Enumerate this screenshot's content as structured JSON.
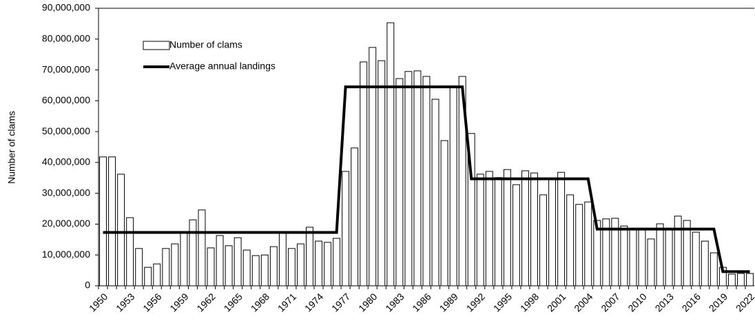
{
  "chart_data": {
    "type": "bar",
    "y_label": "Number of clams",
    "categories": [
      "1950",
      null,
      null,
      "1953",
      null,
      null,
      "1956",
      null,
      null,
      "1959",
      null,
      null,
      "1962",
      null,
      null,
      "1965",
      null,
      null,
      "1968",
      null,
      null,
      "1971",
      null,
      null,
      "1974",
      null,
      null,
      "1977",
      null,
      null,
      "1980",
      null,
      null,
      "1983",
      null,
      null,
      "1986",
      null,
      null,
      "1989",
      null,
      null,
      "1992",
      null,
      null,
      "1995",
      null,
      null,
      "1998",
      null,
      null,
      "2001",
      null,
      null,
      "2004",
      null,
      null,
      "2007",
      null,
      null,
      "2010",
      null,
      null,
      "2013",
      null,
      null,
      "2016",
      null,
      null,
      "2019",
      null,
      null,
      "2022"
    ],
    "series": [
      {
        "name": "Number of clams",
        "type": "bar",
        "color": "#ffffff",
        "edge_color": "#000000",
        "values": [
          41800000,
          41800000,
          36200000,
          22100000,
          12100000,
          6000000,
          7100000,
          12100000,
          13600000,
          17000000,
          21400000,
          24600000,
          12300000,
          16300000,
          13000000,
          15600000,
          11600000,
          9800000,
          10000000,
          12700000,
          17000000,
          12100000,
          13600000,
          19000000,
          14500000,
          14100000,
          15400000,
          37100000,
          44700000,
          72600000,
          77300000,
          73000000,
          85300000,
          67200000,
          69500000,
          69700000,
          67900000,
          60500000,
          47100000,
          64500000,
          67900000,
          49400000,
          36200000,
          37100000,
          35100000,
          37700000,
          32800000,
          37300000,
          36600000,
          29500000,
          34400000,
          36800000,
          29500000,
          26400000,
          27200000,
          21200000,
          21700000,
          21900000,
          19400000,
          18500000,
          18300000,
          15200000,
          20100000,
          18100000,
          22600000,
          21200000,
          17400000,
          14500000,
          10700000,
          6000000,
          3800000,
          4000000,
          4000000
        ]
      },
      {
        "name": "Average annual landings",
        "type": "line",
        "color": "#000000",
        "values": [
          17300000,
          17300000,
          17300000,
          17300000,
          17300000,
          17300000,
          17300000,
          17300000,
          17300000,
          17300000,
          17300000,
          17300000,
          17300000,
          17300000,
          17300000,
          17300000,
          17300000,
          17300000,
          17300000,
          17300000,
          17300000,
          17300000,
          17300000,
          17300000,
          17300000,
          17300000,
          17300000,
          64500000,
          64500000,
          64500000,
          64500000,
          64500000,
          64500000,
          64500000,
          64500000,
          64500000,
          64500000,
          64500000,
          64500000,
          64500000,
          64500000,
          34700000,
          34700000,
          34700000,
          34700000,
          34700000,
          34700000,
          34700000,
          34700000,
          34700000,
          34700000,
          34700000,
          34700000,
          34700000,
          34700000,
          18400000,
          18400000,
          18400000,
          18400000,
          18400000,
          18400000,
          18400000,
          18400000,
          18400000,
          18400000,
          18400000,
          18400000,
          18400000,
          18400000,
          4600000,
          4600000,
          4600000,
          4600000
        ]
      }
    ],
    "ylim": [
      0,
      90000000
    ],
    "yticks": [
      0,
      {
        "value": 10000000,
        "label": "10,000,000"
      },
      {
        "value": 20000000,
        "label": "20,000,000"
      },
      {
        "value": 30000000,
        "label": "30,000,000"
      },
      {
        "value": 40000000,
        "label": "40,000,000"
      },
      {
        "value": 50000000,
        "label": "50,000,000"
      },
      {
        "value": 60000000,
        "label": "60,000,000"
      },
      {
        "value": 70000000,
        "label": "70,000,000"
      },
      {
        "value": 80000000,
        "label": "80,000,000"
      },
      {
        "value": 90000000,
        "label": "90,000,000"
      }
    ],
    "grid": false,
    "legend": "upper left"
  }
}
